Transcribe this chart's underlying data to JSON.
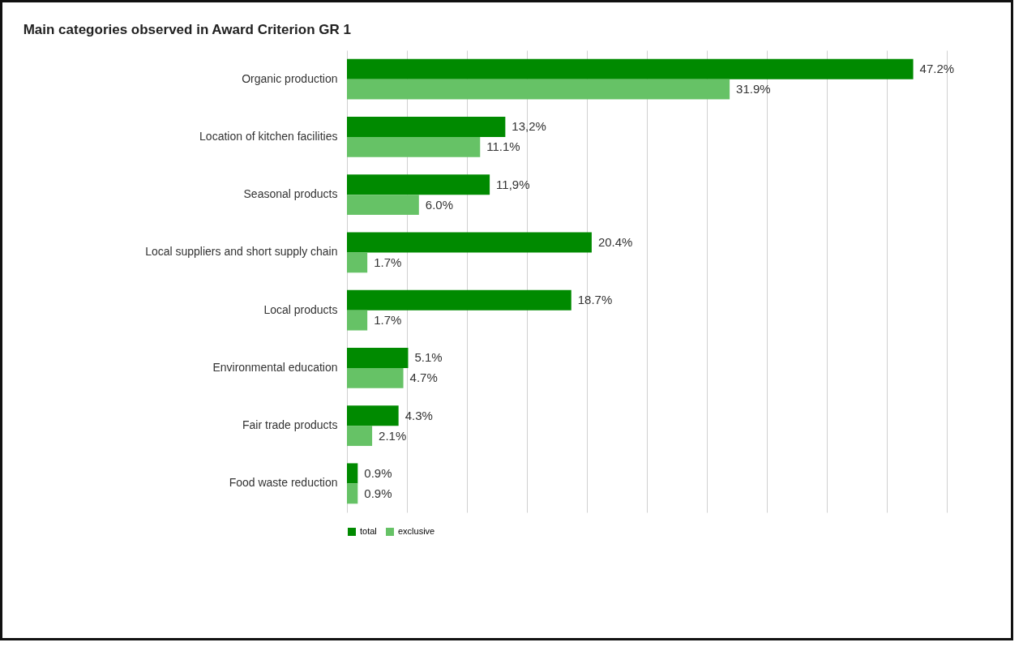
{
  "chart_data": {
    "type": "bar",
    "orientation": "horizontal",
    "title": "Main categories observed in Award Criterion GR 1",
    "categories": [
      "Organic production",
      "Location of kitchen facilities",
      "Seasonal products",
      "Local suppliers and short supply chain",
      "Local products",
      "Environmental education",
      "Fair trade products",
      "Food waste reduction"
    ],
    "series": [
      {
        "name": "total",
        "color": "#008a00",
        "values": [
          47.2,
          13.2,
          11.9,
          20.4,
          18.7,
          5.1,
          4.3,
          0.9
        ],
        "value_labels": [
          "47.2%",
          "13,2%",
          "11,9%",
          "20.4%",
          "18.7%",
          "5.1%",
          "4.3%",
          "0.9%"
        ]
      },
      {
        "name": "exclusive",
        "color": "#66c266",
        "values": [
          31.9,
          11.1,
          6.0,
          1.7,
          1.7,
          4.7,
          2.1,
          0.9
        ],
        "value_labels": [
          "31.9%",
          "11.1%",
          "6.0%",
          "1.7%",
          "1.7%",
          "4.7%",
          "2.1%",
          "0.9%"
        ]
      }
    ],
    "grid": "x",
    "tick_labels": "y",
    "legend": "bottom"
  }
}
